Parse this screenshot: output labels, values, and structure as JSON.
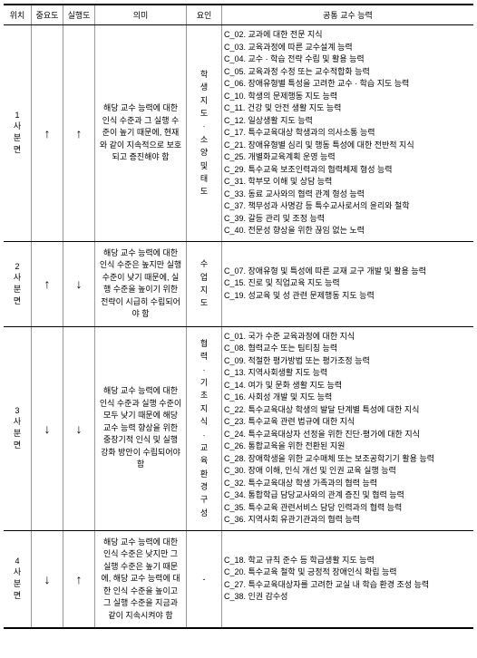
{
  "headers": {
    "c1": "위치",
    "c2": "중요도",
    "c3": "실행도",
    "c4": "의미",
    "c5": "요인",
    "c6": "공통 교수 능력"
  },
  "rows": [
    {
      "pos": "1 사분면",
      "imp": "↑",
      "exe": "↑",
      "meaning": "해당 교수 능력에 대한 인식 수준과 그 실행 수준이 높기 때문에, 현재와 같이 지속적으로 보호되고 증진해야 함",
      "factor": "학생지도 · 소양 및 태도",
      "skills": [
        "C_02. 교과에 대한 전문 지식",
        "C_03. 교육과정에 따른 교수설계 능력",
        "C_04. 교수 · 학습 전략 수립 및 활용 능력",
        "C_05. 교육과정 수정 또는 교수적합화 능력",
        "C_06. 장애유형별 특성을 고려한 교수 · 학습 지도 능력",
        "C_10. 학생의 문제행동 지도 능력",
        "C_11. 건강 및 안전 생활 지도 능력",
        "C_12. 일상생활 지도 능력",
        "C_17. 특수교육대상 학생과의 의사소통 능력",
        "C_21. 장애유형별 심리 및 행동 특성에 대한 전반적 지식",
        "C_25. 개별화교육계획 운영 능력",
        "C_29. 특수교육 보조인력과의 협력체제 형성 능력",
        "C_31. 학부모 이해 및 상담 능력",
        "C_33. 동료 교사와의 협력 관계 형성 능력",
        "C_37. 책무성과 사명감 등 특수교사로서의 윤리와 철학",
        "C_39. 갈등 관리 및 조정 능력",
        "C_40. 전문성 향상을 위한 끊임 없는 노력"
      ]
    },
    {
      "pos": "2 사분면",
      "imp": "↑",
      "exe": "↓",
      "meaning": "해당 교수 능력에 대한 인식 수준은 높지만 실행 수준이 낮기 때문에, 실행 수준을 높이기 위한 전략이 시급히 수립되어야 함",
      "factor": "수업지도",
      "skills": [
        "C_07. 장애유형 및 특성에 따른 교재 교구 개발 및 활용 능력",
        "C_15. 진로 및 직업교육 지도 능력",
        "C_19. 성교육 및 성 관련 문제행동 지도 능력"
      ]
    },
    {
      "pos": "3 사분면",
      "imp": "↓",
      "exe": "↓",
      "meaning": "해당 교수 능력에 대한 인식 수준과 실행 수준이 모두 낮기 때문에 해당 교수 능력 향상을 위한 중장기적 인식 및 실행 강화 방안이 수립되어야 함",
      "factor": "협력 · 기초지식 · 교육환경구성",
      "skills": [
        "C_01. 국가 수준 교육과정에 대한 지식",
        "C_08. 협력교수 또는 팀티칭 능력",
        "C_09. 적절한 평가방법 또는 평가조정 능력",
        "C_13. 지역사회생활 지도 능력",
        "C_14. 여가 및 문화 생활 지도 능력",
        "C_16. 사회성 개발 및 지도 능력",
        "C_22. 특수교육대상 학생의 발달 단계별 특성에 대한 지식",
        "C_23. 특수교육 관련 법규에 대한 지식",
        "C_24. 특수교육대상자 선정을 위한 진단·평가에 대한 지식",
        "C_26. 통합교육을 위한 전환된 지원",
        "C_28. 장애학생을 위한 교수매체 또는 보조공학기기 활용 능력",
        "C_30. 장애 이해, 인식 개선 및 인권 교육 실행 능력",
        "C_32. 특수교육대상 학생 가족과의 협력 능력",
        "C_34. 통합학급 담당교사와의 관계 증진 및 협력 능력",
        "C_35. 특수교육 관련서비스 담당 인력과의 협력 능력",
        "C_36. 지역사회 유관기관과의 협력 능력"
      ]
    },
    {
      "pos": "4 사분면",
      "imp": "↓",
      "exe": "↑",
      "meaning": "해당 교수 능력에 대한 인식 수준은 낮지만 그 실행 수준은 높기 때문에, 해당 교수 능력에 대한 인식 수준을 높이고 그 실행 수준을 지금과 같이 지속시켜야 함",
      "factor": "-",
      "skills": [
        "C_18. 학교 규칙 준수 등 학급생활 지도 능력",
        "C_20. 특수교육 철학 및 긍정적 장애인식 확립 능력",
        "C_27. 특수교육대상자를 고려한 교실 내 학습 환경 조성 능력",
        "C_38. 인권 감수성"
      ]
    }
  ]
}
